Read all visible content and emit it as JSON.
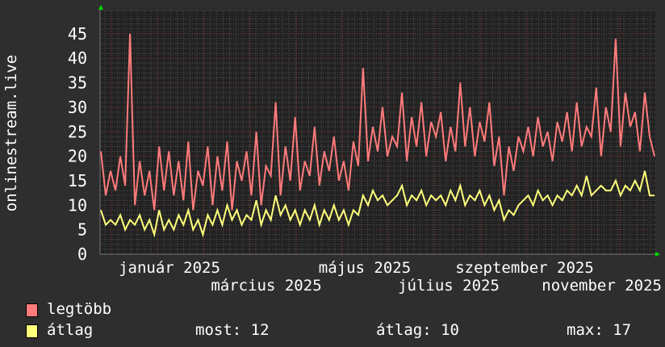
{
  "chart_data": {
    "type": "line",
    "ylabel": "onlinestream.live",
    "ylim": [
      0,
      48
    ],
    "yticks": [
      "0",
      "5",
      "10",
      "15",
      "20",
      "25",
      "30",
      "35",
      "40",
      "45"
    ],
    "xticks": [
      "január 2025",
      "március 2025",
      "május 2025",
      "július 2025",
      "szeptember 2025",
      "november 2025"
    ],
    "grid": true,
    "legend_position": "bottom-left",
    "series": [
      {
        "name": "legtöbb",
        "color": "#ff7b7b",
        "values": [
          21,
          12,
          17,
          13,
          20,
          14,
          45,
          10,
          19,
          12,
          17,
          9,
          22,
          13,
          21,
          12,
          19,
          11,
          23,
          9,
          17,
          14,
          22,
          10,
          20,
          13,
          23,
          9,
          19,
          15,
          21,
          12,
          25,
          10,
          18,
          16,
          31,
          12,
          22,
          15,
          28,
          13,
          19,
          16,
          26,
          14,
          21,
          17,
          24,
          15,
          19,
          13,
          23,
          18,
          38,
          19,
          26,
          21,
          30,
          20,
          24,
          22,
          33,
          19,
          28,
          22,
          31,
          20,
          27,
          24,
          29,
          19,
          26,
          21,
          35,
          22,
          30,
          20,
          27,
          23,
          31,
          18,
          24,
          12,
          22,
          17,
          24,
          21,
          26,
          20,
          28,
          22,
          25,
          19,
          27,
          23,
          29,
          21,
          31,
          22,
          26,
          24,
          34,
          20,
          30,
          25,
          44,
          22,
          33,
          26,
          29,
          21,
          33,
          24,
          20
        ]
      },
      {
        "name": "átlag",
        "color": "#ffff7b",
        "values": [
          9,
          6,
          7,
          6,
          8,
          5,
          7,
          6,
          8,
          5,
          7,
          4,
          9,
          5,
          7,
          5,
          8,
          6,
          9,
          5,
          7,
          4,
          8,
          6,
          9,
          6,
          10,
          7,
          9,
          6,
          8,
          7,
          11,
          6,
          9,
          7,
          12,
          8,
          10,
          7,
          9,
          6,
          9,
          7,
          10,
          6,
          9,
          7,
          10,
          7,
          9,
          6,
          9,
          8,
          12,
          10,
          13,
          11,
          12,
          10,
          11,
          12,
          14,
          10,
          12,
          11,
          13,
          10,
          12,
          11,
          12,
          10,
          13,
          11,
          14,
          10,
          12,
          11,
          13,
          10,
          12,
          9,
          11,
          7,
          9,
          8,
          10,
          11,
          12,
          10,
          13,
          11,
          12,
          10,
          12,
          11,
          13,
          12,
          14,
          12,
          16,
          12,
          13,
          14,
          13,
          13,
          15,
          12,
          14,
          13,
          15,
          13,
          17,
          12,
          12
        ]
      }
    ]
  },
  "legend": {
    "items": [
      {
        "label": "legtöbb",
        "color": "#ff7b7b"
      },
      {
        "label": "átlag",
        "color": "#ffff7b"
      }
    ],
    "stats": {
      "now": "most: 12",
      "avg": "átlag: 10",
      "max": "max: 17"
    }
  }
}
